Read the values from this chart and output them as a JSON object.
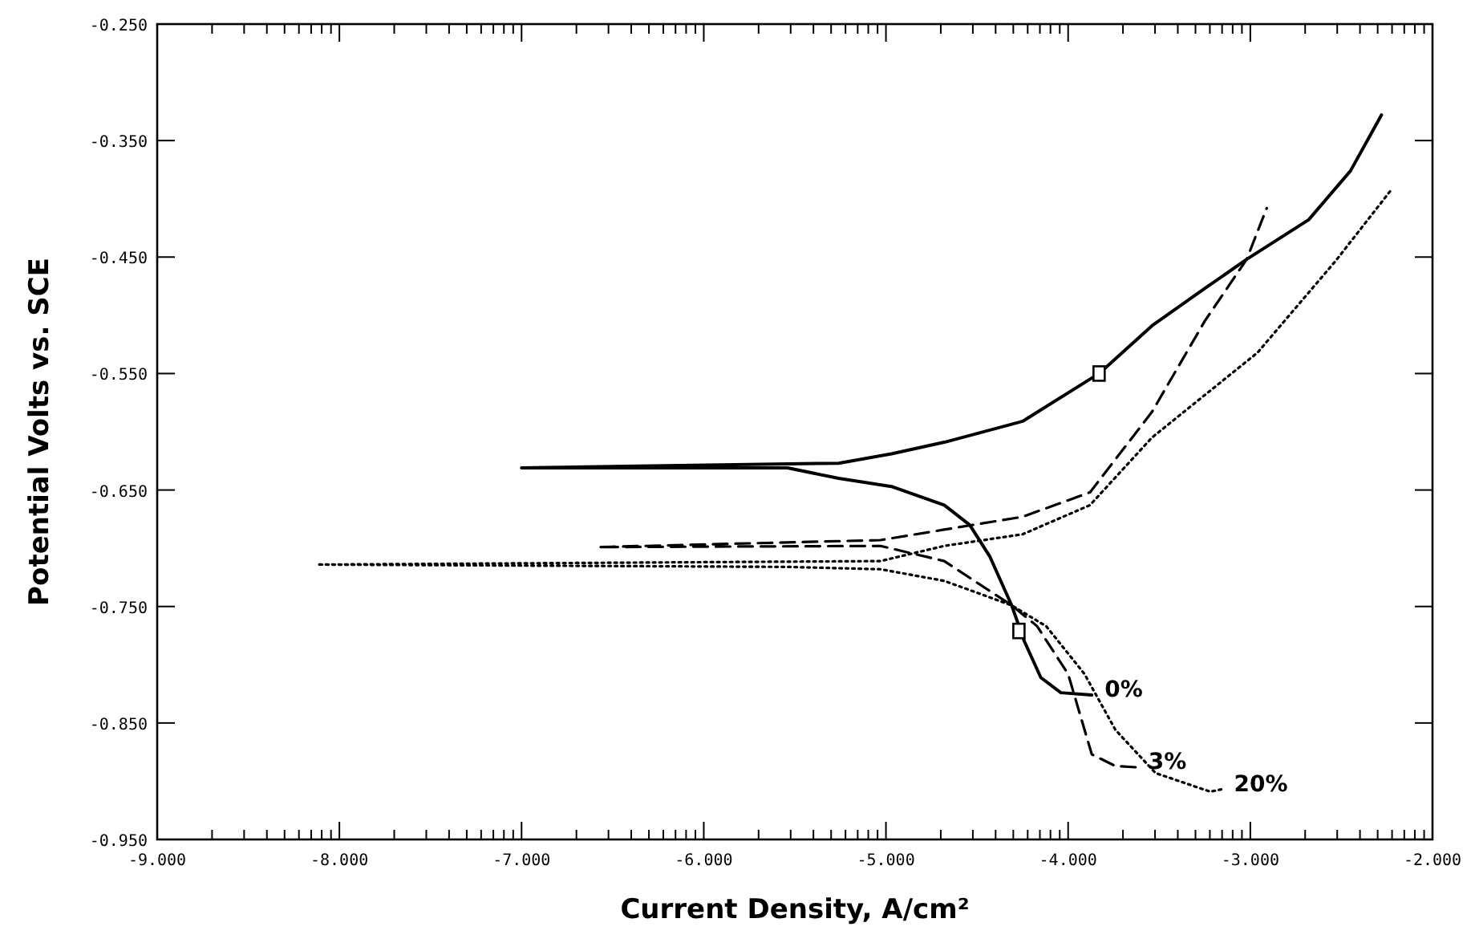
{
  "chart_data": {
    "type": "line",
    "xlabel": "Current Density, A/cm²",
    "ylabel": "Potential Volts vs. SCE",
    "xlim": [
      -9,
      -2
    ],
    "ylim": [
      -0.95,
      -0.25
    ],
    "xticks": [
      {
        "value": -9,
        "label": "-9.000"
      },
      {
        "value": -8.699,
        "label": null
      },
      {
        "value": -8.523,
        "label": null
      },
      {
        "value": -8.398,
        "label": null
      },
      {
        "value": -8.301,
        "label": null
      },
      {
        "value": -8.222,
        "label": null
      },
      {
        "value": -8.155,
        "label": null
      },
      {
        "value": -8.097,
        "label": null
      },
      {
        "value": -8.046,
        "label": null
      },
      {
        "value": -8,
        "label": "-8.000"
      },
      {
        "value": -7.699,
        "label": null
      },
      {
        "value": -7.523,
        "label": null
      },
      {
        "value": -7.398,
        "label": null
      },
      {
        "value": -7.301,
        "label": null
      },
      {
        "value": -7.222,
        "label": null
      },
      {
        "value": -7.155,
        "label": null
      },
      {
        "value": -7.097,
        "label": null
      },
      {
        "value": -7.046,
        "label": null
      },
      {
        "value": -7,
        "label": "-7.000"
      },
      {
        "value": -6.699,
        "label": null
      },
      {
        "value": -6.523,
        "label": null
      },
      {
        "value": -6.398,
        "label": null
      },
      {
        "value": -6.301,
        "label": null
      },
      {
        "value": -6.222,
        "label": null
      },
      {
        "value": -6.155,
        "label": null
      },
      {
        "value": -6.097,
        "label": null
      },
      {
        "value": -6.046,
        "label": null
      },
      {
        "value": -6,
        "label": "-6.000"
      },
      {
        "value": -5.699,
        "label": null
      },
      {
        "value": -5.523,
        "label": null
      },
      {
        "value": -5.398,
        "label": null
      },
      {
        "value": -5.301,
        "label": null
      },
      {
        "value": -5.222,
        "label": null
      },
      {
        "value": -5.155,
        "label": null
      },
      {
        "value": -5.097,
        "label": null
      },
      {
        "value": -5.046,
        "label": null
      },
      {
        "value": -5,
        "label": "-5.000"
      },
      {
        "value": -4.699,
        "label": null
      },
      {
        "value": -4.523,
        "label": null
      },
      {
        "value": -4.398,
        "label": null
      },
      {
        "value": -4.301,
        "label": null
      },
      {
        "value": -4.222,
        "label": null
      },
      {
        "value": -4.155,
        "label": null
      },
      {
        "value": -4.097,
        "label": null
      },
      {
        "value": -4.046,
        "label": null
      },
      {
        "value": -4,
        "label": "-4.000"
      },
      {
        "value": -3.699,
        "label": null
      },
      {
        "value": -3.523,
        "label": null
      },
      {
        "value": -3.398,
        "label": null
      },
      {
        "value": -3.301,
        "label": null
      },
      {
        "value": -3.222,
        "label": null
      },
      {
        "value": -3.155,
        "label": null
      },
      {
        "value": -3.097,
        "label": null
      },
      {
        "value": -3.046,
        "label": null
      },
      {
        "value": -3,
        "label": "-3.000"
      },
      {
        "value": -2.699,
        "label": null
      },
      {
        "value": -2.523,
        "label": null
      },
      {
        "value": -2.398,
        "label": null
      },
      {
        "value": -2.301,
        "label": null
      },
      {
        "value": -2.222,
        "label": null
      },
      {
        "value": -2.155,
        "label": null
      },
      {
        "value": -2.097,
        "label": null
      },
      {
        "value": -2.046,
        "label": null
      },
      {
        "value": -2,
        "label": "-2.000"
      }
    ],
    "yticks": [
      {
        "value": -0.95,
        "label": "-0.950"
      },
      {
        "value": -0.85,
        "label": "-0.850"
      },
      {
        "value": -0.75,
        "label": "-0.750"
      },
      {
        "value": -0.65,
        "label": "-0.650"
      },
      {
        "value": -0.55,
        "label": "-0.550"
      },
      {
        "value": -0.45,
        "label": "-0.450"
      },
      {
        "value": -0.35,
        "label": "-0.350"
      },
      {
        "value": -0.25,
        "label": "-0.250"
      }
    ],
    "series": [
      {
        "name": "0%",
        "color": "#000000",
        "line_style": "solid",
        "x": [
          -3.87,
          -4.04,
          -4.15,
          -4.24,
          -4.31,
          -4.43,
          -4.54,
          -4.68,
          -4.97,
          -5.26,
          -5.54,
          -5.97,
          -7.0,
          -5.26,
          -4.97,
          -4.68,
          -4.25,
          -3.83,
          -3.54,
          -3.25,
          -3.02,
          -2.68,
          -2.45,
          -2.28
        ],
        "values": [
          -0.826,
          -0.824,
          -0.811,
          -0.78,
          -0.749,
          -0.707,
          -0.68,
          -0.663,
          -0.647,
          -0.64,
          -0.631,
          -0.631,
          -0.631,
          -0.627,
          -0.619,
          -0.609,
          -0.591,
          -0.55,
          -0.509,
          -0.477,
          -0.452,
          -0.418,
          -0.376,
          -0.328
        ]
      },
      {
        "name": "3%",
        "color": "#000000",
        "line_style": "dashed",
        "x": [
          -3.63,
          -3.74,
          -3.87,
          -4.0,
          -4.17,
          -4.31,
          -4.68,
          -5.03,
          -6.58,
          -5.03,
          -4.68,
          -4.25,
          -3.88,
          -3.54,
          -3.25,
          -3.02,
          -2.91
        ],
        "values": [
          -0.888,
          -0.887,
          -0.877,
          -0.808,
          -0.767,
          -0.749,
          -0.711,
          -0.698,
          -0.699,
          -0.693,
          -0.684,
          -0.673,
          -0.652,
          -0.583,
          -0.505,
          -0.452,
          -0.408
        ]
      },
      {
        "name": "20%",
        "color": "#000000",
        "line_style": "dotted",
        "x": [
          -3.16,
          -3.22,
          -3.52,
          -3.74,
          -3.91,
          -4.12,
          -4.31,
          -4.68,
          -5.03,
          -5.54,
          -8.12,
          -5.03,
          -4.68,
          -4.25,
          -3.88,
          -3.54,
          -2.96,
          -2.53,
          -2.22
        ],
        "values": [
          -0.907,
          -0.909,
          -0.893,
          -0.856,
          -0.808,
          -0.767,
          -0.749,
          -0.728,
          -0.718,
          -0.716,
          -0.714,
          -0.711,
          -0.698,
          -0.688,
          -0.663,
          -0.605,
          -0.532,
          -0.453,
          -0.391
        ]
      },
      {
        "type": "scatter",
        "marker": "square",
        "color": "#000000",
        "x": [
          -3.83,
          -4.27
        ],
        "values": [
          -0.55,
          -0.771
        ]
      }
    ]
  }
}
